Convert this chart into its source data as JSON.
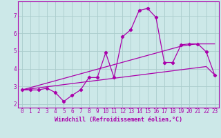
{
  "xlabel": "Windchill (Refroidissement éolien,°C)",
  "bg_color": "#cce8e8",
  "grid_color": "#aacccc",
  "line_color": "#aa00aa",
  "x_data": [
    0,
    1,
    2,
    3,
    4,
    5,
    6,
    7,
    8,
    9,
    10,
    11,
    12,
    13,
    14,
    15,
    16,
    17,
    18,
    19,
    20,
    21,
    22,
    23
  ],
  "y_main": [
    2.8,
    2.8,
    2.8,
    2.9,
    2.65,
    2.15,
    2.5,
    2.8,
    3.5,
    3.5,
    4.9,
    3.5,
    5.8,
    6.2,
    7.3,
    7.4,
    6.9,
    4.35,
    4.35,
    5.35,
    5.4,
    5.4,
    4.95,
    3.65
  ],
  "y_line1": [
    2.8,
    2.93,
    3.06,
    3.19,
    3.32,
    3.45,
    3.58,
    3.71,
    3.84,
    3.97,
    4.1,
    4.23,
    4.36,
    4.49,
    4.62,
    4.75,
    4.88,
    5.01,
    5.14,
    5.27,
    5.35,
    5.4,
    5.4,
    5.4
  ],
  "y_line2": [
    2.8,
    2.86,
    2.92,
    2.98,
    3.04,
    3.1,
    3.16,
    3.22,
    3.28,
    3.34,
    3.4,
    3.46,
    3.52,
    3.58,
    3.64,
    3.7,
    3.76,
    3.82,
    3.88,
    3.94,
    4.0,
    4.06,
    4.12,
    3.65
  ],
  "xlim": [
    -0.5,
    23.5
  ],
  "ylim": [
    1.8,
    7.8
  ],
  "yticks": [
    2,
    3,
    4,
    5,
    6,
    7
  ],
  "xticks": [
    0,
    1,
    2,
    3,
    4,
    5,
    6,
    7,
    8,
    9,
    10,
    11,
    12,
    13,
    14,
    15,
    16,
    17,
    18,
    19,
    20,
    21,
    22,
    23
  ]
}
